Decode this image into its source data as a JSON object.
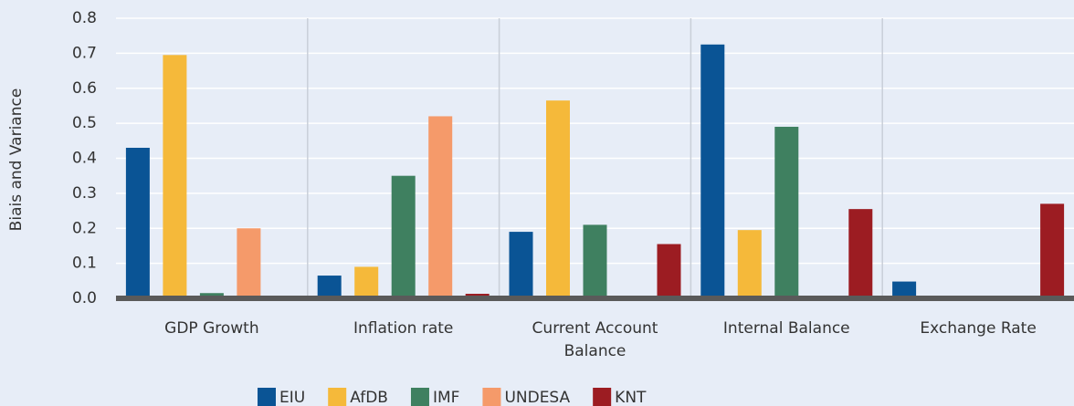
{
  "chart_data": {
    "type": "bar",
    "y_label": "Biais and Variance",
    "categories": [
      "GDP Growth",
      "Inflation rate",
      "Current Account Balance",
      "Internal Balance",
      "Exchange Rate"
    ],
    "series": [
      {
        "name": "EIU",
        "color": "#0a5495",
        "values": [
          0.43,
          0.065,
          0.19,
          0.725,
          0.048
        ]
      },
      {
        "name": "AfDB",
        "color": "#f5b93a",
        "values": [
          0.695,
          0.09,
          0.565,
          0.195,
          0
        ]
      },
      {
        "name": "IMF",
        "color": "#3f8060",
        "values": [
          0.015,
          0.35,
          0.21,
          0.49,
          0
        ]
      },
      {
        "name": "UNDESA",
        "color": "#f59a6a",
        "values": [
          0.2,
          0.52,
          0,
          0,
          0
        ]
      },
      {
        "name": "KNT",
        "color": "#9c1c22",
        "values": [
          0.005,
          0.013,
          0.155,
          0.255,
          0.27
        ]
      }
    ],
    "ylim": [
      0,
      0.8
    ],
    "yticks": [
      {
        "value": 0,
        "label": "0.0"
      },
      0.1,
      0.2,
      0.3,
      0.4,
      0.5,
      0.6,
      0.7,
      0.8
    ],
    "grid": true
  }
}
